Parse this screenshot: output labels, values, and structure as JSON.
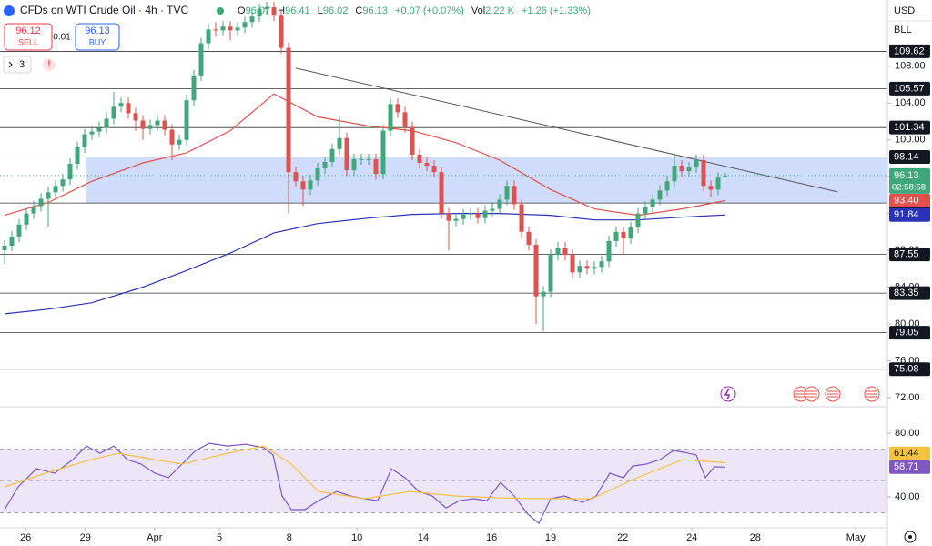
{
  "chart_data": {
    "type": "candlestick",
    "title": "CFDs on WTI Crude Oil · 4h · TVC",
    "ohlc": [
      {
        "label": "O",
        "value": 96.07
      },
      {
        "label": "H",
        "value": 96.41
      },
      {
        "label": "L",
        "value": 96.02
      },
      {
        "label": "C",
        "value": 96.13
      }
    ],
    "change": "+0.07 (+0.07%)",
    "volume_label": "Vol",
    "volume": "2.22 K",
    "volume_change": "+1.26 (+1.33%)",
    "trade": {
      "sell_price": 96.12,
      "sell_label": "SELL",
      "spread": 0.01,
      "buy_price": 96.13,
      "buy_label": "BUY"
    },
    "indicator_count": 3,
    "currency": "USD",
    "unit": "BLL",
    "xlim": [
      -0.625,
      121.25
    ],
    "xticks": [
      {
        "value": 2.9,
        "label": "26"
      },
      {
        "value": 11.1,
        "label": "29"
      },
      {
        "value": 20.6,
        "label": "Apr"
      },
      {
        "value": 29.5,
        "label": "5"
      },
      {
        "value": 39.1,
        "label": "8"
      },
      {
        "value": 48.4,
        "label": "10"
      },
      {
        "value": 57.5,
        "label": "14"
      },
      {
        "value": 66.9,
        "label": "16"
      },
      {
        "value": 75,
        "label": "19"
      },
      {
        "value": 84.9,
        "label": "22"
      },
      {
        "value": 94.4,
        "label": "24"
      },
      {
        "value": 103.1,
        "label": "28"
      },
      {
        "value": 116.9,
        "label": "May"
      }
    ],
    "ylim": [
      71,
      115.2
    ],
    "yticks": [
      {
        "value": 72,
        "label": "72.00"
      },
      {
        "value": 76,
        "label": "76.00"
      },
      {
        "value": 80,
        "label": "80.00"
      },
      {
        "value": 84,
        "label": "84.00"
      },
      {
        "value": 88,
        "label": "88.00"
      },
      {
        "value": 92,
        "label": "92.00"
      },
      {
        "value": 96,
        "label": "96.00"
      },
      {
        "value": 100,
        "label": "100.00"
      },
      {
        "value": 104,
        "label": "104.00"
      },
      {
        "value": 108,
        "label": "108.00"
      }
    ],
    "grid": false,
    "up_color": "#3fa77a",
    "down_color": "#e0524f",
    "open": [
      88.0,
      88.5,
      89.5,
      90.8,
      92.0,
      92.8,
      93.6,
      94.3,
      95.0,
      95.7,
      97.4,
      99.2,
      100.6,
      100.9,
      101.3,
      102.3,
      103.6,
      104.0,
      102.9,
      102.1,
      101.2,
      101.6,
      102.1,
      101.1,
      99.5,
      100.0,
      104.3,
      107.0,
      110.5,
      112.0,
      111.9,
      112.3,
      111.9,
      112.2,
      112.8,
      113.4,
      114.2,
      114.4,
      113.5,
      110.0,
      96.5,
      95.5,
      94.6,
      95.6,
      96.9,
      97.6,
      99.0,
      100.2,
      96.7,
      97.9,
      97.9,
      97.9,
      96.3,
      101.0,
      103.9,
      103.0,
      101.4,
      98.4,
      97.5,
      97.2,
      96.5,
      92.0,
      91.2,
      91.4,
      91.9,
      92.0,
      91.5,
      92.3,
      92.5,
      93.5,
      95.0,
      93.0,
      90.0,
      88.6,
      83.0,
      83.5,
      87.5,
      88.3,
      87.5,
      85.6,
      86.3,
      86.0,
      86.2,
      86.8,
      89.0,
      90.0,
      89.3,
      90.5,
      92.0,
      92.7,
      93.5,
      94.5,
      95.5,
      97.2,
      96.6,
      97.0,
      97.8,
      95.0,
      94.6,
      96.07
    ],
    "high": [
      89.1,
      90.1,
      91.4,
      92.6,
      93.4,
      94.2,
      94.9,
      95.6,
      96.3,
      98.0,
      99.8,
      101.2,
      101.5,
      102.0,
      103.0,
      105.2,
      104.6,
      104.6,
      103.5,
      102.7,
      102.2,
      102.7,
      102.7,
      101.7,
      100.6,
      104.9,
      107.6,
      111.1,
      112.6,
      112.8,
      112.9,
      112.9,
      112.8,
      113.4,
      114.0,
      114.8,
      115.0,
      115.0,
      114.1,
      110.6,
      97.1,
      96.1,
      96.2,
      97.5,
      98.2,
      99.6,
      102.5,
      100.8,
      98.5,
      98.5,
      98.5,
      98.5,
      101.6,
      104.5,
      104.5,
      103.6,
      102.0,
      99.0,
      98.1,
      97.8,
      97.1,
      92.6,
      92.0,
      92.5,
      92.6,
      92.6,
      92.9,
      93.1,
      94.1,
      95.6,
      95.6,
      93.6,
      90.6,
      89.2,
      84.1,
      88.1,
      88.9,
      88.9,
      88.1,
      86.9,
      86.9,
      86.8,
      87.4,
      89.6,
      90.6,
      90.6,
      91.1,
      92.6,
      93.3,
      94.1,
      95.1,
      96.1,
      98.5,
      97.8,
      97.6,
      98.4,
      98.4,
      95.6,
      96.5,
      96.41
    ],
    "low": [
      86.5,
      87.9,
      88.9,
      90.2,
      91.4,
      92.2,
      90.5,
      93.7,
      94.4,
      95.1,
      96.8,
      98.6,
      100.0,
      100.3,
      100.7,
      101.7,
      103.0,
      102.3,
      101.0,
      100.0,
      100.6,
      101.0,
      100.5,
      97.8,
      98.9,
      99.4,
      103.7,
      106.4,
      109.9,
      111.2,
      111.3,
      110.8,
      111.3,
      111.6,
      112.2,
      112.8,
      113.6,
      112.9,
      109.4,
      92.0,
      94.9,
      92.8,
      94.0,
      95.0,
      96.3,
      97.0,
      98.4,
      96.1,
      96.1,
      97.3,
      97.3,
      95.7,
      95.7,
      100.4,
      102.4,
      100.8,
      97.8,
      96.9,
      96.6,
      95.9,
      91.4,
      88.0,
      90.6,
      90.8,
      91.3,
      90.9,
      90.9,
      91.7,
      91.9,
      92.9,
      92.4,
      89.4,
      88.0,
      80.0,
      79.2,
      82.9,
      86.9,
      86.9,
      85.0,
      85.0,
      85.4,
      85.4,
      85.6,
      86.2,
      88.4,
      87.5,
      88.7,
      89.9,
      91.4,
      92.1,
      92.9,
      93.9,
      94.9,
      96.0,
      96.0,
      96.4,
      94.4,
      93.8,
      94.0,
      96.02
    ],
    "close": [
      88.5,
      89.5,
      90.8,
      92.0,
      92.8,
      93.6,
      94.3,
      95.0,
      95.7,
      97.4,
      99.2,
      100.6,
      100.9,
      101.3,
      102.3,
      103.6,
      104.0,
      102.9,
      102.1,
      101.2,
      101.6,
      102.1,
      101.1,
      99.5,
      100.0,
      104.3,
      107.0,
      110.5,
      112.0,
      111.9,
      112.3,
      111.9,
      112.2,
      112.8,
      113.4,
      114.2,
      114.4,
      113.5,
      110.0,
      96.5,
      95.5,
      94.6,
      95.6,
      96.9,
      97.6,
      99.0,
      100.2,
      96.7,
      97.9,
      97.9,
      97.9,
      96.3,
      101.0,
      103.9,
      103.0,
      101.4,
      98.4,
      97.5,
      97.2,
      96.5,
      92.0,
      91.2,
      91.4,
      91.9,
      92.0,
      91.5,
      92.3,
      92.5,
      93.5,
      95.0,
      93.0,
      90.0,
      88.6,
      83.0,
      83.5,
      87.5,
      88.3,
      87.5,
      85.6,
      86.3,
      86.0,
      86.2,
      86.8,
      89.0,
      90.0,
      89.3,
      90.5,
      92.0,
      92.7,
      93.5,
      94.5,
      95.5,
      97.2,
      96.6,
      97.0,
      97.8,
      95.0,
      94.6,
      95.9,
      96.13
    ],
    "lines": [
      {
        "color": "#e2504c",
        "x": [
          0,
          6,
          12,
          19,
          25,
          31,
          37,
          43,
          50,
          56,
          62,
          68,
          75,
          81,
          87,
          93,
          99
        ],
        "values": [
          91.8,
          93.2,
          95.5,
          97.5,
          98.6,
          101.0,
          105.0,
          102.5,
          101.5,
          101.0,
          99.7,
          97.8,
          94.6,
          92.5,
          91.8,
          92.5,
          93.4
        ]
      },
      {
        "color": "#2a33b8",
        "x": [
          0,
          6,
          12,
          19,
          25,
          31,
          37,
          43,
          50,
          56,
          62,
          68,
          75,
          81,
          87,
          93,
          99
        ],
        "values": [
          81.1,
          81.6,
          82.3,
          84.0,
          85.8,
          87.7,
          89.9,
          90.9,
          91.5,
          91.9,
          92.0,
          92.0,
          91.8,
          91.3,
          91.3,
          91.6,
          91.84
        ]
      }
    ],
    "trendline": {
      "color": "#555555",
      "x": [
        40,
        114.4
      ],
      "values": [
        107.8,
        94.35
      ]
    },
    "zone": {
      "color": "#c8d6fb",
      "x": [
        11.25,
        121.25
      ],
      "range": [
        93.14,
        98.14
      ]
    },
    "levels": [
      109.62,
      105.57,
      101.34,
      98.14,
      93.14,
      87.55,
      83.35,
      79.05,
      75.08
    ],
    "price_badge": {
      "value": 96.13,
      "countdown": "02:58:58",
      "color": "#3fa77a"
    },
    "line_badges": [
      {
        "value": 93.4,
        "label": "93.40",
        "color": "#e2504c"
      },
      {
        "value": 91.84,
        "label": "91.84",
        "color": "#2a33b8"
      }
    ],
    "rsi": {
      "ylim": [
        20.6,
        96.6
      ],
      "yticks": [
        {
          "value": 40,
          "label": "40.00"
        },
        {
          "value": 80,
          "label": "80.00"
        }
      ],
      "band": [
        30,
        70
      ],
      "mid": 50,
      "band_color": "#ece6f7",
      "series": [
        {
          "color": "#7e57c2",
          "x": [
            0,
            1.875,
            4.375,
            6.875,
            9.375,
            11.25,
            13.125,
            15,
            16.875,
            18.75,
            20.625,
            22.5,
            24.375,
            26.25,
            28.125,
            30.625,
            33.125,
            35.625,
            36.875,
            38.125,
            39.375,
            41.25,
            43.125,
            45.625,
            47.5,
            49.375,
            51.25,
            53.125,
            55,
            56.875,
            58.75,
            60.625,
            62.5,
            64.375,
            66.25,
            68.125,
            70,
            71.875,
            73.375,
            75,
            76.875,
            79.375,
            81.25,
            83.125,
            85,
            86.25,
            88.125,
            90,
            91.875,
            93.375,
            95,
            96.25,
            97.5,
            99
          ],
          "values": [
            32,
            46.3,
            57.7,
            54.9,
            63.4,
            72,
            67.4,
            72,
            63.4,
            60.6,
            54.9,
            52,
            60.6,
            69.1,
            73.7,
            72,
            73.1,
            70.9,
            66.3,
            40.6,
            32,
            32,
            37.7,
            43.4,
            40.6,
            38.9,
            37.7,
            57.7,
            52,
            43.4,
            40.6,
            33.1,
            37.7,
            38.9,
            37.7,
            49.1,
            40.6,
            29.1,
            23.4,
            38.9,
            40.6,
            36.6,
            40.6,
            54.9,
            52,
            59.4,
            60.6,
            63.4,
            69.1,
            68,
            66.3,
            52,
            58.9,
            58.71
          ]
        },
        {
          "color": "#f5c242",
          "x": [
            0,
            5.625,
            11.875,
            15.625,
            20.625,
            24.375,
            30.625,
            35.625,
            39.375,
            43.125,
            49.375,
            55.625,
            61.875,
            68.125,
            74.375,
            80.625,
            86.875,
            93.125,
            99
          ],
          "values": [
            46.3,
            54.9,
            63.4,
            67.4,
            63.4,
            60.6,
            67.4,
            72,
            60.6,
            43.4,
            38.9,
            43.4,
            40.6,
            39.4,
            38.9,
            38.9,
            52,
            63.4,
            61.44
          ]
        }
      ]
    }
  }
}
